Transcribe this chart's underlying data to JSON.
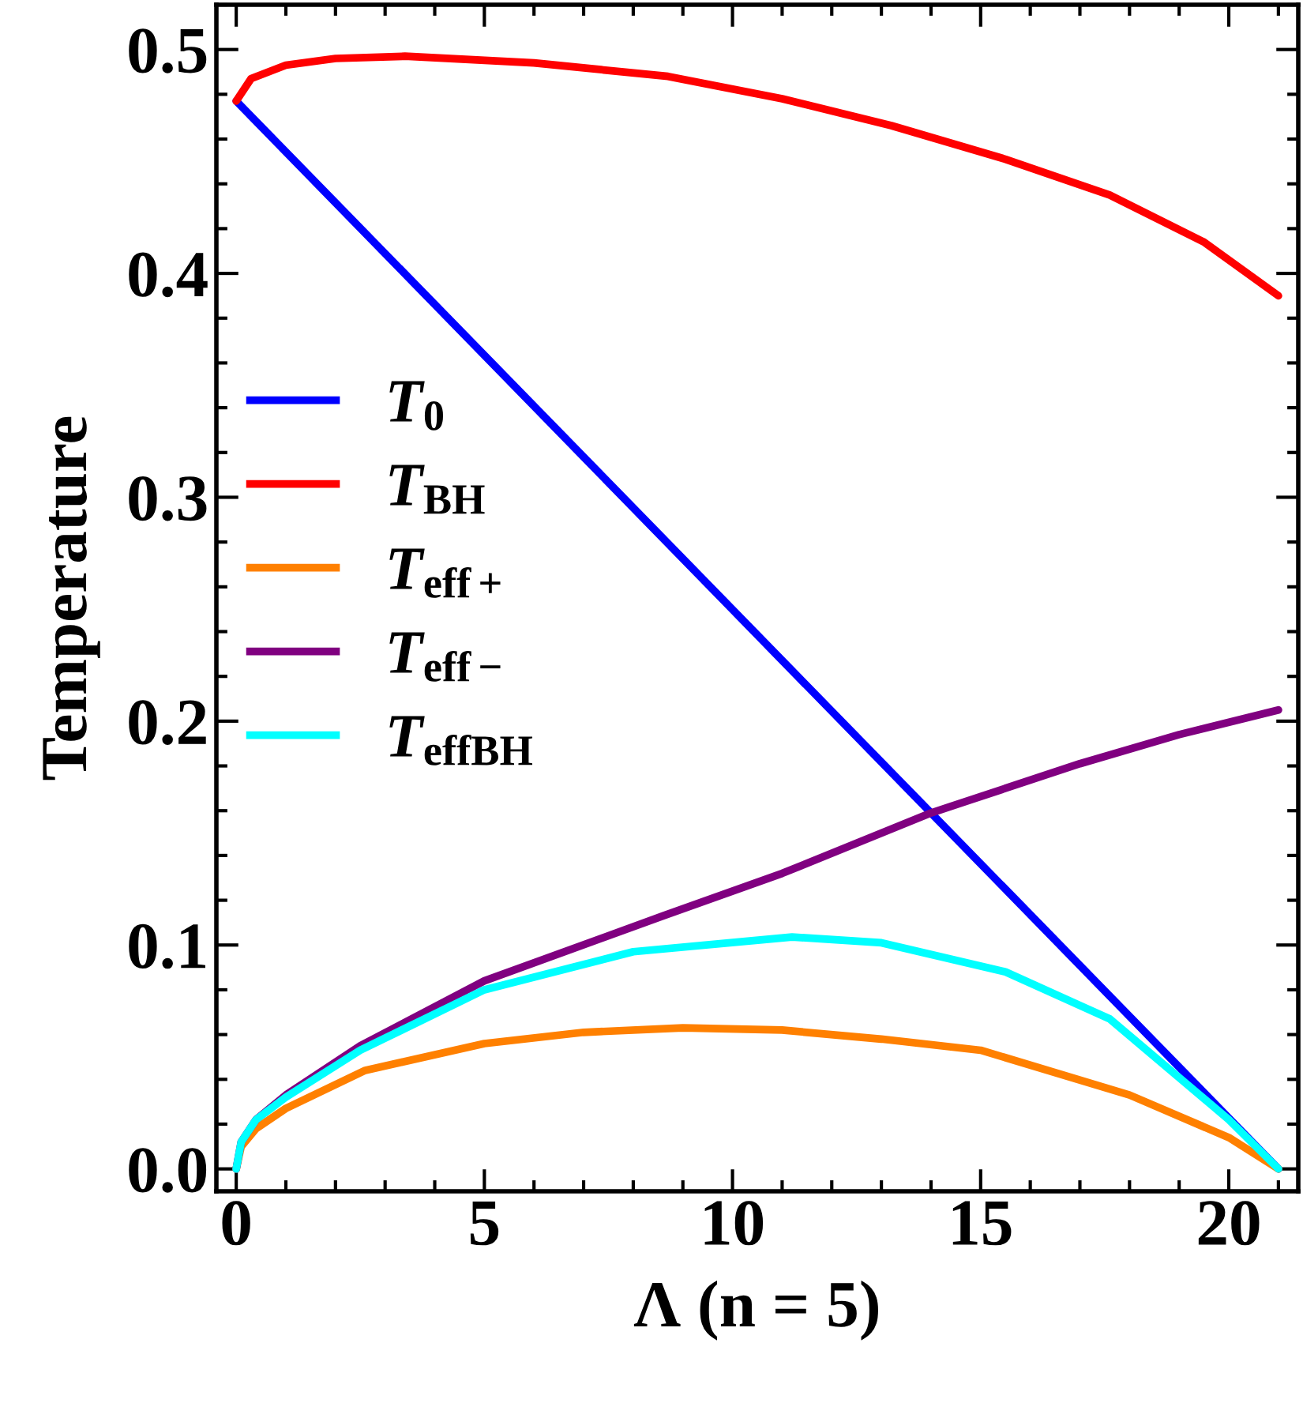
{
  "chart_data": {
    "type": "line",
    "xlabel": "Λ (n = 5)",
    "ylabel": "Temperature",
    "xlim": [
      -0.4,
      21.4
    ],
    "ylim": [
      -0.01,
      0.52
    ],
    "xticks": [
      0,
      5,
      10,
      15,
      20
    ],
    "yticks": [
      {
        "value": 0,
        "label": "0.0"
      },
      0.1,
      0.2,
      0.3,
      0.4,
      0.5
    ],
    "legend": "left",
    "grid": false,
    "marker": "none",
    "line_style": "solid",
    "series": [
      {
        "name": "T$_{0}$",
        "color": "#0000ff",
        "x": [
          0,
          21
        ],
        "values": [
          0.477,
          0
        ]
      },
      {
        "name": "T$_{BH}$",
        "color": "#ff0000",
        "x": [
          0,
          0.3,
          1,
          2,
          3.4,
          6,
          8.7,
          11,
          13.2,
          15.5,
          17.6,
          19.5,
          21
        ],
        "values": [
          0.477,
          0.487,
          0.493,
          0.496,
          0.497,
          0.494,
          0.488,
          0.478,
          0.466,
          0.451,
          0.435,
          0.414,
          0.39
        ]
      },
      {
        "name": "T$_{eff+}$",
        "color": "#ff8000",
        "x": [
          0,
          0.1,
          0.4,
          1,
          2.6,
          5,
          7,
          9,
          11,
          13,
          15,
          18,
          20,
          21
        ],
        "values": [
          0,
          0.01,
          0.018,
          0.027,
          0.044,
          0.056,
          0.061,
          0.063,
          0.062,
          0.058,
          0.053,
          0.033,
          0.014,
          0
        ]
      },
      {
        "name": "T$_{eff−}$",
        "color": "#800080",
        "x": [
          0,
          0.1,
          0.4,
          1,
          2.5,
          5,
          8.6,
          11,
          14,
          17,
          19,
          21
        ],
        "values": [
          0,
          0.012,
          0.022,
          0.033,
          0.055,
          0.084,
          0.113,
          0.132,
          0.159,
          0.181,
          0.194,
          0.205
        ]
      },
      {
        "name": "T$_{effBH}$",
        "color": "#00ffff",
        "x": [
          0,
          0.1,
          0.4,
          1,
          2.5,
          5,
          8,
          11.2,
          13,
          15.5,
          17.6,
          20,
          21
        ],
        "values": [
          0,
          0.012,
          0.022,
          0.032,
          0.053,
          0.08,
          0.097,
          0.1036,
          0.101,
          0.088,
          0.067,
          0.022,
          0
        ]
      }
    ]
  }
}
